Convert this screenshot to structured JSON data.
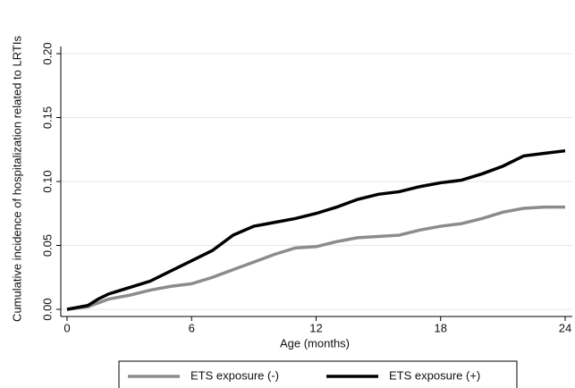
{
  "chart_data": {
    "type": "line",
    "x_label": "Age (months)",
    "y_label": "Cumulative incidence of hospitalization related to LRTIs",
    "x": [
      0,
      1,
      1.5,
      2,
      3,
      4,
      5,
      6,
      7,
      8,
      9,
      10,
      11,
      12,
      13,
      14,
      15,
      16,
      17,
      18,
      19,
      20,
      21,
      22,
      23,
      24
    ],
    "series": [
      {
        "name": "ETS exposure (-)",
        "color": "#8c8c8c",
        "values": [
          0,
          0.002,
          0.005,
          0.008,
          0.011,
          0.015,
          0.018,
          0.02,
          0.025,
          0.031,
          0.037,
          0.043,
          0.048,
          0.049,
          0.053,
          0.056,
          0.057,
          0.058,
          0.062,
          0.065,
          0.067,
          0.071,
          0.076,
          0.079,
          0.08,
          0.08
        ]
      },
      {
        "name": "ETS exposure (+)",
        "color": "#000000",
        "values": [
          0,
          0.003,
          0.008,
          0.012,
          0.017,
          0.022,
          0.03,
          0.038,
          0.046,
          0.058,
          0.065,
          0.068,
          0.071,
          0.075,
          0.08,
          0.086,
          0.09,
          0.092,
          0.096,
          0.099,
          0.101,
          0.106,
          0.112,
          0.12,
          0.122,
          0.124
        ]
      }
    ],
    "xlim": [
      0,
      24
    ],
    "xticks": [
      0,
      6,
      12,
      18,
      24
    ],
    "ylim": [
      0,
      0.2
    ],
    "yticks": [
      {
        "value": 0,
        "label": "0.00"
      },
      {
        "value": 0.05,
        "label": "0.05"
      },
      {
        "value": 0.1,
        "label": "0.10"
      },
      {
        "value": 0.15,
        "label": "0.15"
      },
      {
        "value": 0.2,
        "label": "0.20"
      }
    ],
    "grid": true,
    "legend": "bottom"
  }
}
